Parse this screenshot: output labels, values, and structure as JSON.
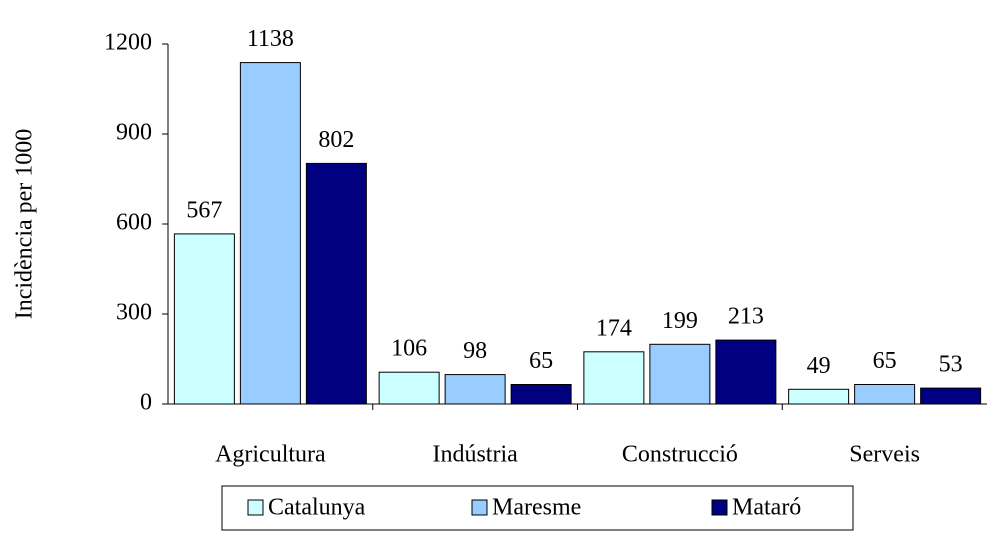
{
  "chart_data": {
    "type": "bar",
    "y_axis_label": "Incidència per 1000",
    "categories": [
      "Agricultura",
      "Indústria",
      "Construcció",
      "Serveis"
    ],
    "series": [
      {
        "name": "Catalunya",
        "color": "#ccffff",
        "values": [
          567,
          106,
          174,
          49
        ]
      },
      {
        "name": "Maresme",
        "color": "#99ccff",
        "values": [
          1138,
          98,
          199,
          65
        ]
      },
      {
        "name": "Mataró",
        "color": "#000080",
        "values": [
          802,
          65,
          213,
          53
        ]
      }
    ],
    "ylim": [
      0,
      1200
    ],
    "yticks": [
      0,
      300,
      600,
      900,
      1200
    ],
    "grid": false,
    "legend": "bottom"
  }
}
